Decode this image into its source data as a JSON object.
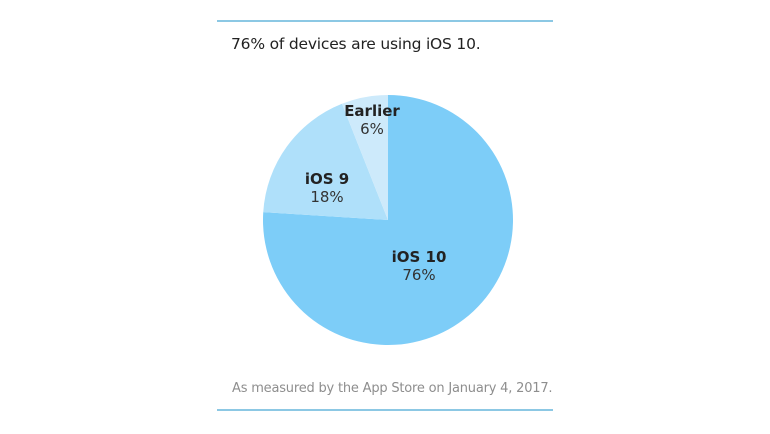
{
  "headline": "76% of devices are using iOS 10.",
  "footnote": "As measured by the App Store on January 4, 2017.",
  "colors": {
    "rule": "#8cc8e4",
    "ios10": "#7dcdf8",
    "ios9": "#afe0fa",
    "earlier": "#cdeafb"
  },
  "labels": {
    "ios10": {
      "name": "iOS 10",
      "pct": "76%"
    },
    "ios9": {
      "name": "iOS 9",
      "pct": "18%"
    },
    "earlier": {
      "name": "Earlier",
      "pct": "6%"
    }
  },
  "chart_data": {
    "type": "pie",
    "title": "76% of devices are using iOS 10.",
    "categories": [
      "iOS 10",
      "iOS 9",
      "Earlier"
    ],
    "values": [
      76,
      18,
      6
    ],
    "unit": "%",
    "start_angle": "12 o'clock, clockwise",
    "legend": "none (inline labels)",
    "annotation": "As measured by the App Store on January 4, 2017."
  }
}
